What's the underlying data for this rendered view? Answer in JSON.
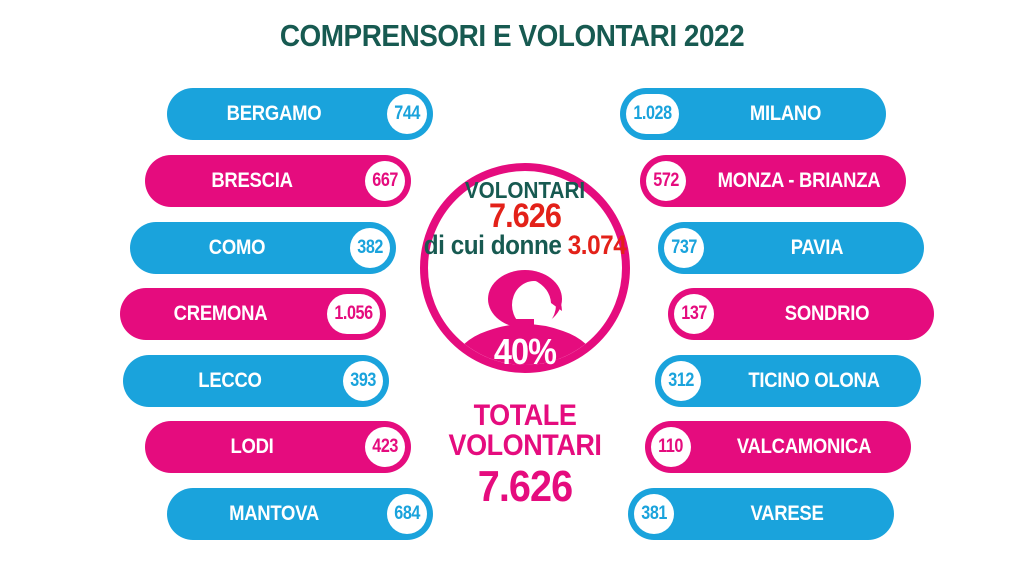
{
  "title": "COMPRENSORI E VOLONTARI 2022",
  "colors": {
    "blue": "#1AA3DC",
    "pink": "#E50C7E",
    "teal": "#175A51",
    "red": "#E32119",
    "white": "#FFFFFF"
  },
  "left_column": [
    {
      "name": "BERGAMO",
      "value": "744",
      "color": "blue"
    },
    {
      "name": "BRESCIA",
      "value": "667",
      "color": "pink"
    },
    {
      "name": "COMO",
      "value": "382",
      "color": "blue"
    },
    {
      "name": "CREMONA",
      "value": "1.056",
      "color": "pink"
    },
    {
      "name": "LECCO",
      "value": "393",
      "color": "blue"
    },
    {
      "name": "LODI",
      "value": "423",
      "color": "pink"
    },
    {
      "name": "MANTOVA",
      "value": "684",
      "color": "blue"
    }
  ],
  "right_column": [
    {
      "name": "MILANO",
      "value": "1.028",
      "color": "blue"
    },
    {
      "name": "MONZA - BRIANZA",
      "value": "572",
      "color": "pink"
    },
    {
      "name": "PAVIA",
      "value": "737",
      "color": "blue"
    },
    {
      "name": "SONDRIO",
      "value": "137",
      "color": "pink"
    },
    {
      "name": "TICINO OLONA",
      "value": "312",
      "color": "blue"
    },
    {
      "name": "VALCAMONICA",
      "value": "110",
      "color": "pink"
    },
    {
      "name": "VARESE",
      "value": "381",
      "color": "blue"
    }
  ],
  "center": {
    "volontari_label": "VOLONTARI",
    "volontari_value": "7.626",
    "donne_label": "di cui donne",
    "donne_value": "3.074",
    "percent": "40%",
    "totale_line1": "TOTALE",
    "totale_line2": "VOLONTARI",
    "totale_value": "7.626"
  },
  "chart_data": {
    "type": "table",
    "title": "COMPRENSORI E VOLONTARI 2022",
    "categories": [
      "BERGAMO",
      "BRESCIA",
      "COMO",
      "CREMONA",
      "LECCO",
      "LODI",
      "MANTOVA",
      "MILANO",
      "MONZA - BRIANZA",
      "PAVIA",
      "SONDRIO",
      "TICINO OLONA",
      "VALCAMONICA",
      "VARESE"
    ],
    "values": [
      744,
      667,
      382,
      1056,
      393,
      423,
      684,
      1028,
      572,
      737,
      137,
      312,
      110,
      381
    ],
    "annotations": {
      "total_volunteers": 7626,
      "women_volunteers": 3074,
      "women_percent": "40%"
    }
  }
}
